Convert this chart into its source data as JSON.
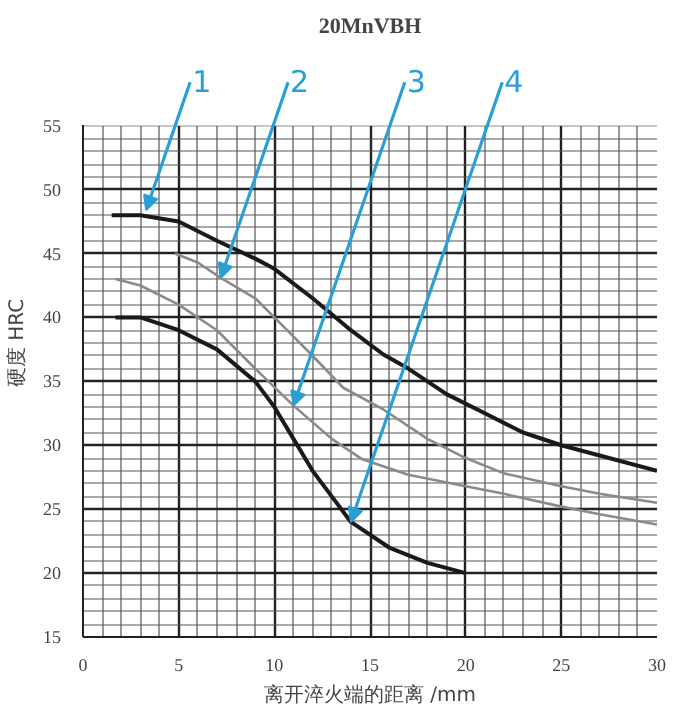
{
  "chart_data": {
    "type": "line",
    "title": "20MnVBH",
    "xlabel": "离开淬火端的距离 /mm",
    "ylabel": "硬度 HRC",
    "xlim": [
      0,
      30
    ],
    "ylim": [
      15,
      55
    ],
    "xticks": [
      0,
      5,
      10,
      15,
      20,
      25,
      30
    ],
    "yticks": [
      15,
      20,
      25,
      30,
      35,
      40,
      45,
      50,
      55
    ],
    "grid": true,
    "marker": "none",
    "line_style": "solid",
    "series": [
      {
        "color": "#1a1a1a",
        "x": [
          1.5,
          3,
          5,
          7,
          9,
          10,
          12,
          14,
          15.7,
          17,
          19,
          21,
          23,
          25,
          27,
          30
        ],
        "values": [
          48,
          48,
          47.5,
          46,
          44.6,
          43.8,
          41.5,
          39,
          37.1,
          36,
          34,
          32.5,
          31,
          30,
          29.2,
          28
        ]
      },
      {
        "color": "#8a8a8a",
        "x": [
          4.8,
          6,
          7.2,
          9,
          10,
          12,
          13.6,
          15.7,
          18,
          20,
          22,
          25,
          27,
          30
        ],
        "values": [
          45,
          44.3,
          43.1,
          41.5,
          40,
          37,
          34.5,
          32.8,
          30.5,
          29,
          27.8,
          26.8,
          26.2,
          25.5
        ]
      },
      {
        "color": "#8a8a8a",
        "x": [
          1.7,
          3,
          5,
          7,
          9,
          11,
          13,
          14.6,
          17,
          20,
          22,
          25,
          27,
          30
        ],
        "values": [
          43,
          42.5,
          41,
          39,
          36,
          33.1,
          30.5,
          28.9,
          27.7,
          26.8,
          26.2,
          25.2,
          24.6,
          23.8
        ]
      },
      {
        "color": "#1a1a1a",
        "x": [
          1.7,
          3,
          5,
          7,
          9,
          10,
          11,
          12,
          13,
          14,
          16,
          18,
          20
        ],
        "values": [
          40,
          40,
          39,
          37.5,
          35,
          33,
          30.5,
          28,
          26,
          24,
          22,
          20.8,
          20
        ]
      }
    ],
    "annotations": [
      {
        "text": "1",
        "x": 3.3,
        "y": 48.4
      },
      {
        "text": "2",
        "x": 7.2,
        "y": 43.1
      },
      {
        "text": "3",
        "x": 11,
        "y": 33.1
      },
      {
        "text": "4",
        "x": 14,
        "y": 24
      }
    ]
  }
}
